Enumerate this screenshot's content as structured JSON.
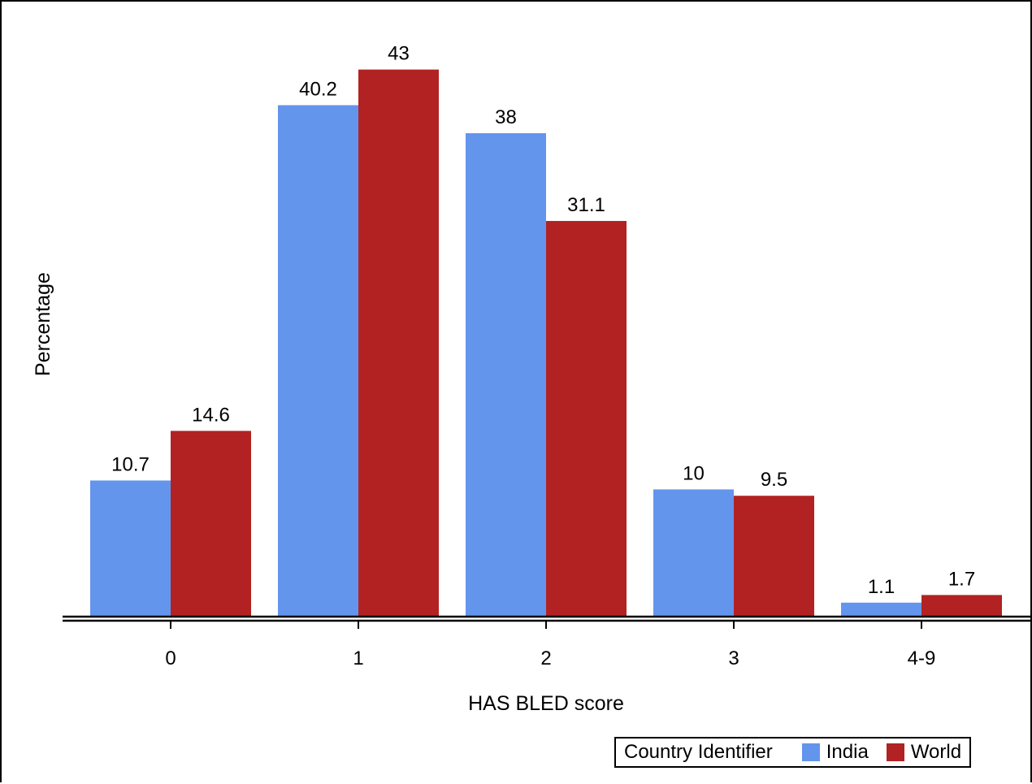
{
  "chart_data": {
    "type": "bar",
    "title": "",
    "xlabel": "HAS BLED score",
    "ylabel": "Percentage",
    "categories": [
      "0",
      "1",
      "2",
      "3",
      "4-9"
    ],
    "series": [
      {
        "name": "India",
        "color": "#6495ED",
        "values": [
          10.7,
          40.2,
          38,
          10,
          1.1
        ],
        "labels": [
          "10.7",
          "40.2",
          "38",
          "10",
          "1.1"
        ]
      },
      {
        "name": "World",
        "color": "#B22222",
        "values": [
          14.6,
          43,
          31.1,
          9.5,
          1.7
        ],
        "labels": [
          "14.6",
          "43",
          "31.1",
          "9.5",
          "1.7"
        ]
      }
    ],
    "ylim": [
      0,
      48
    ],
    "grid": false,
    "legend": {
      "title": "Country Identifier",
      "placement": "bottom-right"
    }
  }
}
